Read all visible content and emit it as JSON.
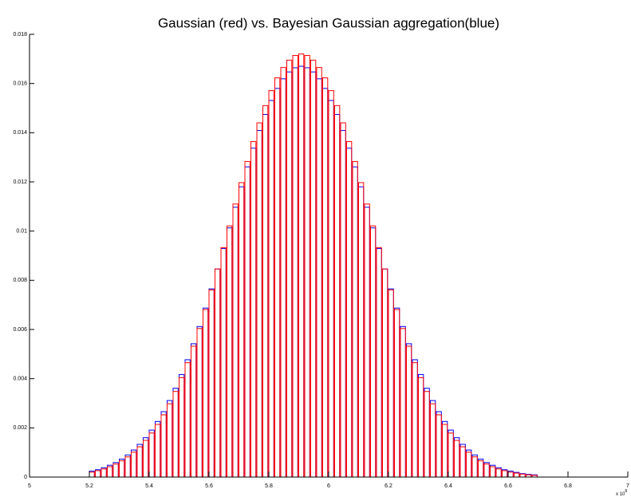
{
  "chart_data": {
    "type": "histogram",
    "title": "Gaussian (red) vs. Bayesian Gaussian aggregation(blue)",
    "axis_multiplier": "x 10",
    "axis_multiplier_exponent": "8",
    "xlim": [
      5,
      7
    ],
    "xticks": [
      5,
      5.2,
      5.4,
      5.6,
      5.8,
      6,
      6.2,
      6.4,
      6.6,
      6.8,
      7
    ],
    "ylim": [
      0,
      0.018
    ],
    "yticks": [
      0,
      0.002,
      0.004,
      0.006,
      0.008,
      0.01,
      0.012,
      0.014,
      0.016,
      0.018
    ],
    "grid": false,
    "bins": [
      5.2,
      5.22,
      5.24,
      5.26,
      5.28,
      5.3,
      5.32,
      5.34,
      5.36,
      5.38,
      5.4,
      5.42,
      5.44,
      5.46,
      5.48,
      5.5,
      5.52,
      5.54,
      5.56,
      5.58,
      5.6,
      5.62,
      5.64,
      5.66,
      5.68,
      5.7,
      5.72,
      5.74,
      5.76,
      5.78,
      5.8,
      5.82,
      5.84,
      5.86,
      5.88,
      5.9,
      5.92,
      5.94,
      5.96,
      5.98,
      6,
      6.02,
      6.04,
      6.06,
      6.08,
      6.1,
      6.12,
      6.14,
      6.16,
      6.18,
      6.2,
      6.22,
      6.24,
      6.26,
      6.28,
      6.3,
      6.32,
      6.34,
      6.36,
      6.38,
      6.4,
      6.42,
      6.44,
      6.46,
      6.48,
      6.5,
      6.52,
      6.54,
      6.56,
      6.58,
      6.6,
      6.62,
      6.64,
      6.66,
      6.68,
      6.7
    ],
    "series": [
      {
        "name": "Bayesian Gaussian aggregation",
        "color": "#0000ff",
        "values": [
          0.00024,
          0.0003,
          0.00038,
          0.00048,
          0.00059,
          0.00073,
          0.0009,
          0.0011,
          0.00133,
          0.0016,
          0.00191,
          0.00226,
          0.00266,
          0.00311,
          0.00361,
          0.00417,
          0.00477,
          0.00542,
          0.00612,
          0.00687,
          0.00765,
          0.00846,
          0.00929,
          0.01013,
          0.01097,
          0.0118,
          0.01261,
          0.01337,
          0.01409,
          0.01474,
          0.01531,
          0.0158,
          0.01619,
          0.01647,
          0.01664,
          0.0167,
          0.01664,
          0.01647,
          0.01619,
          0.0158,
          0.01531,
          0.01474,
          0.01409,
          0.01337,
          0.01261,
          0.0118,
          0.01097,
          0.01013,
          0.00929,
          0.00846,
          0.00765,
          0.00687,
          0.00612,
          0.00542,
          0.00477,
          0.00417,
          0.00361,
          0.00311,
          0.00266,
          0.00226,
          0.00191,
          0.0016,
          0.00133,
          0.0011,
          0.0009,
          0.00073,
          0.00059,
          0.00048,
          0.00038,
          0.0003,
          0.00024,
          0.00019,
          0.00014,
          0.00011,
          9e-05
        ]
      },
      {
        "name": "Gaussian",
        "color": "#ff0000",
        "values": [
          0.0002,
          0.00026,
          0.00033,
          0.00042,
          0.00053,
          0.00066,
          0.00082,
          0.00101,
          0.00123,
          0.00149,
          0.00179,
          0.00214,
          0.00253,
          0.00298,
          0.00348,
          0.00404,
          0.00465,
          0.00532,
          0.00604,
          0.00681,
          0.00761,
          0.00846,
          0.00933,
          0.01021,
          0.0111,
          0.01197,
          0.01283,
          0.01364,
          0.0144,
          0.0151,
          0.01571,
          0.01623,
          0.01665,
          0.01695,
          0.01714,
          0.0172,
          0.01714,
          0.01695,
          0.01665,
          0.01623,
          0.01571,
          0.0151,
          0.0144,
          0.01364,
          0.01283,
          0.01197,
          0.0111,
          0.01021,
          0.00933,
          0.00846,
          0.00761,
          0.00681,
          0.00604,
          0.00532,
          0.00465,
          0.00404,
          0.00348,
          0.00298,
          0.00253,
          0.00214,
          0.00179,
          0.00149,
          0.00123,
          0.00101,
          0.00082,
          0.00066,
          0.00053,
          0.00042,
          0.00033,
          0.00026,
          0.0002,
          0.00016,
          0.00012,
          9e-05,
          7e-05
        ]
      }
    ]
  }
}
